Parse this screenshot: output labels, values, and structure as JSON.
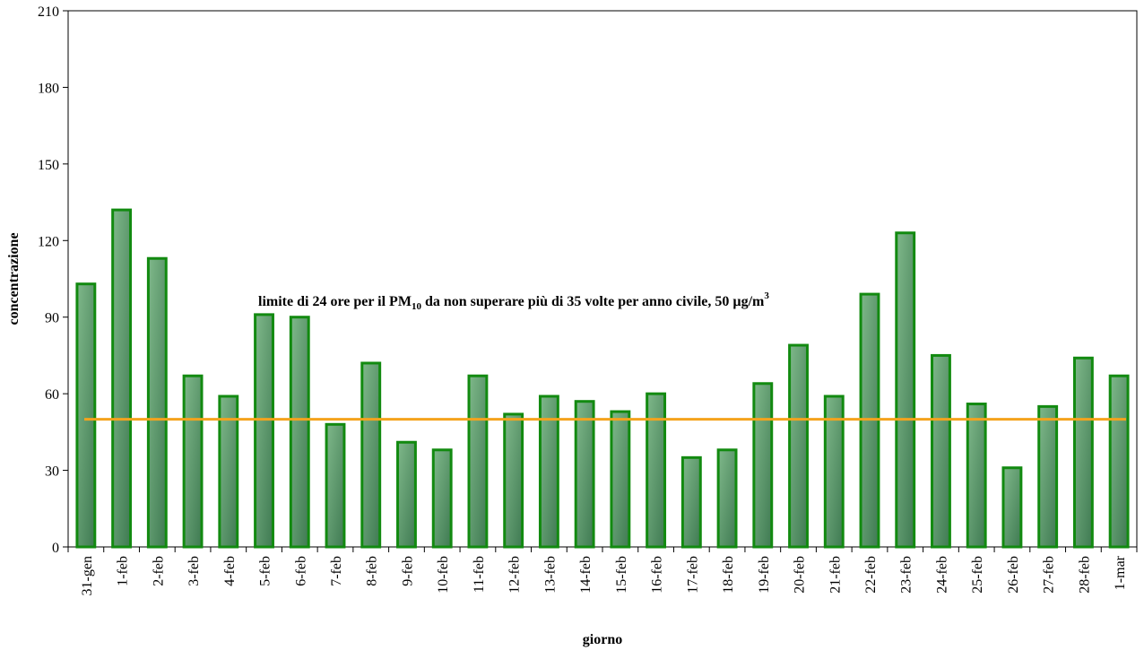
{
  "chart_data": {
    "type": "bar",
    "x_label": "giorno",
    "y_label": "concentrazione",
    "categories": [
      "31-gen",
      "1-feb",
      "2-feb",
      "3-feb",
      "4-feb",
      "5-feb",
      "6-feb",
      "7-feb",
      "8-feb",
      "9-feb",
      "10-feb",
      "11-feb",
      "12-feb",
      "13-feb",
      "14-feb",
      "15-feb",
      "16-feb",
      "17-feb",
      "18-feb",
      "19-feb",
      "20-feb",
      "21-feb",
      "22-feb",
      "23-feb",
      "24-feb",
      "25-feb",
      "26-feb",
      "27-feb",
      "28-feb",
      "1-mar"
    ],
    "values": [
      103,
      132,
      113,
      67,
      59,
      91,
      90,
      48,
      72,
      41,
      38,
      67,
      52,
      59,
      57,
      53,
      60,
      35,
      38,
      64,
      79,
      59,
      99,
      123,
      75,
      56,
      31,
      55,
      74,
      67
    ],
    "color": "#5e9c6c",
    "edge_color": "#128a10",
    "ylim": [
      0,
      210
    ],
    "yticks": [
      0,
      30,
      60,
      90,
      120,
      150,
      180,
      210
    ],
    "reference_line": {
      "value": 50,
      "color": "#f5a31c"
    },
    "annotation": {
      "parts": [
        "limite di 24 ore per il PM",
        "10",
        " da non superare più di 35 volte per anno civile, 50 µg/m",
        "3"
      ]
    }
  }
}
